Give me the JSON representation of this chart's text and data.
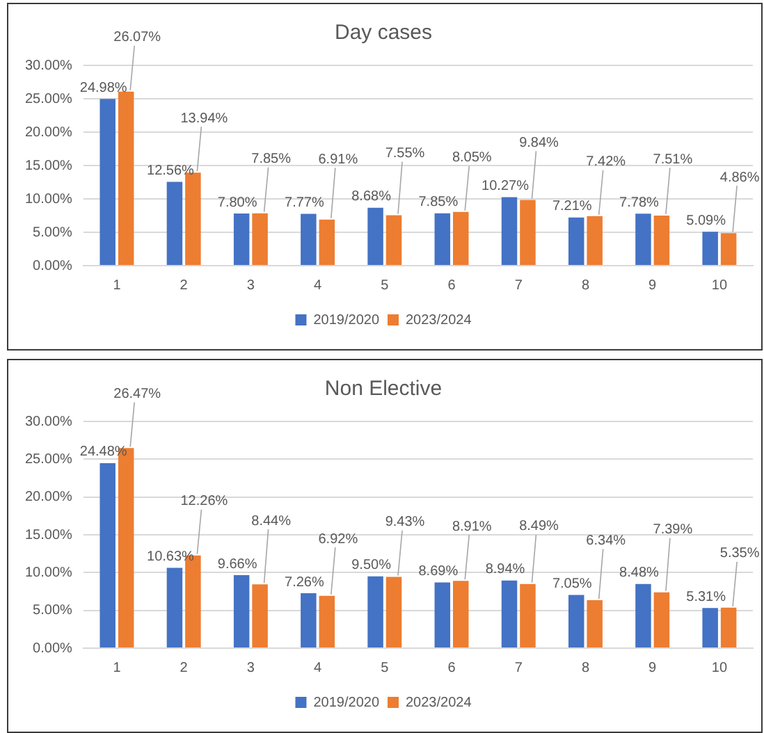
{
  "chart_data": [
    {
      "type": "bar",
      "title": "Day cases",
      "categories": [
        "1",
        "2",
        "3",
        "4",
        "5",
        "6",
        "7",
        "8",
        "9",
        "10"
      ],
      "series": [
        {
          "name": "2019/2020",
          "color": "#4472c4",
          "values": [
            24.98,
            12.56,
            7.8,
            7.77,
            8.68,
            7.85,
            10.27,
            7.21,
            7.78,
            5.09
          ],
          "value_labels": [
            "24.98%",
            "12.56%",
            "7.80%",
            "7.77%",
            "8.68%",
            "7.85%",
            "10.27%",
            "7.21%",
            "7.78%",
            "5.09%"
          ]
        },
        {
          "name": "2023/2024",
          "color": "#ed7d31",
          "values": [
            26.07,
            13.94,
            7.85,
            6.91,
            7.55,
            8.05,
            9.84,
            7.42,
            7.51,
            4.86
          ],
          "value_labels": [
            "26.07%",
            "13.94%",
            "7.85%",
            "6.91%",
            "7.55%",
            "8.05%",
            "9.84%",
            "7.42%",
            "7.51%",
            "4.86%"
          ]
        }
      ],
      "ylim": [
        0,
        30
      ],
      "yticks": [
        {
          "value": 0,
          "label": "0.00%"
        },
        {
          "value": 5,
          "label": "5.00%"
        },
        {
          "value": 10,
          "label": "10.00%"
        },
        {
          "value": 15,
          "label": "15.00%"
        },
        {
          "value": 20,
          "label": "20.00%"
        },
        {
          "value": 25,
          "label": "25.00%"
        },
        {
          "value": 30,
          "label": "30.00%"
        }
      ],
      "grid": "y",
      "legend": "bottom"
    },
    {
      "type": "bar",
      "title": "Non Elective",
      "categories": [
        "1",
        "2",
        "3",
        "4",
        "5",
        "6",
        "7",
        "8",
        "9",
        "10"
      ],
      "series": [
        {
          "name": "2019/2020",
          "color": "#4472c4",
          "values": [
            24.48,
            10.63,
            9.66,
            7.26,
            9.5,
            8.69,
            8.94,
            7.05,
            8.48,
            5.31
          ],
          "value_labels": [
            "24.48%",
            "10.63%",
            "9.66%",
            "7.26%",
            "9.50%",
            "8.69%",
            "8.94%",
            "7.05%",
            "8.48%",
            "5.31%"
          ]
        },
        {
          "name": "2023/2024",
          "color": "#ed7d31",
          "values": [
            26.47,
            12.26,
            8.44,
            6.92,
            9.43,
            8.91,
            8.49,
            6.34,
            7.39,
            5.35
          ],
          "value_labels": [
            "26.47%",
            "12.26%",
            "8.44%",
            "6.92%",
            "9.43%",
            "8.91%",
            "8.49%",
            "6.34%",
            "7.39%",
            "5.35%"
          ]
        }
      ],
      "ylim": [
        0,
        30
      ],
      "yticks": [
        {
          "value": 0,
          "label": "0.00%"
        },
        {
          "value": 5,
          "label": "5.00%"
        },
        {
          "value": 10,
          "label": "10.00%"
        },
        {
          "value": 15,
          "label": "15.00%"
        },
        {
          "value": 20,
          "label": "20.00%"
        },
        {
          "value": 25,
          "label": "25.00%"
        },
        {
          "value": 30,
          "label": "30.00%"
        }
      ],
      "grid": "y",
      "legend": "bottom"
    }
  ]
}
